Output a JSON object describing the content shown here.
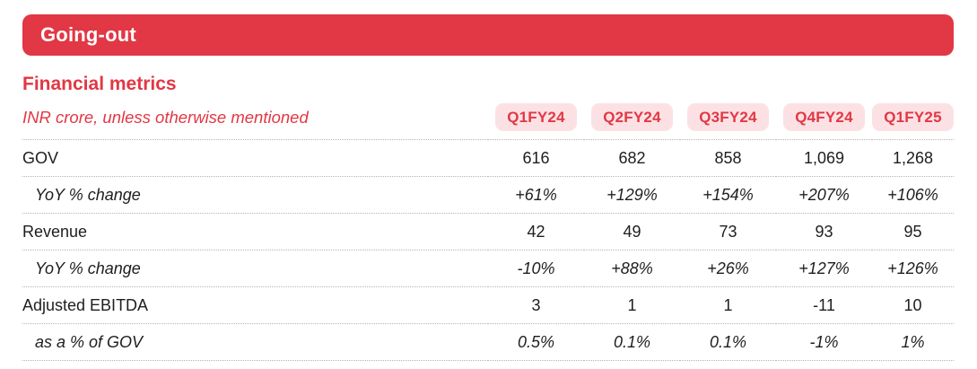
{
  "colors": {
    "accent": "#e23744",
    "pill_bg": "#fce1e4",
    "banner_text": "#ffffff",
    "text": "#1e1e1e",
    "divider": "#b5b5b5",
    "page_bg": "#ffffff"
  },
  "banner": {
    "title": "Going-out"
  },
  "section": {
    "title": "Financial metrics",
    "subtitle": "INR crore, unless otherwise mentioned"
  },
  "table": {
    "columns": [
      "Q1FY24",
      "Q2FY24",
      "Q3FY24",
      "Q4FY24",
      "Q1FY25"
    ],
    "rows": [
      {
        "label": "GOV",
        "style": "primary",
        "values": [
          "616",
          "682",
          "858",
          "1,069",
          "1,268"
        ]
      },
      {
        "label": "YoY % change",
        "style": "sub",
        "values": [
          "+61%",
          "+129%",
          "+154%",
          "+207%",
          "+106%"
        ]
      },
      {
        "label": "Revenue",
        "style": "primary",
        "values": [
          "42",
          "49",
          "73",
          "93",
          "95"
        ]
      },
      {
        "label": "YoY % change",
        "style": "sub",
        "values": [
          "-10%",
          "+88%",
          "+26%",
          "+127%",
          "+126%"
        ]
      },
      {
        "label": "Adjusted EBITDA",
        "style": "primary",
        "values": [
          "3",
          "1",
          "1",
          "-11",
          "10"
        ]
      },
      {
        "label": "as a % of GOV",
        "style": "sub",
        "values": [
          "0.5%",
          "0.1%",
          "0.1%",
          "-1%",
          "1%"
        ]
      }
    ]
  }
}
